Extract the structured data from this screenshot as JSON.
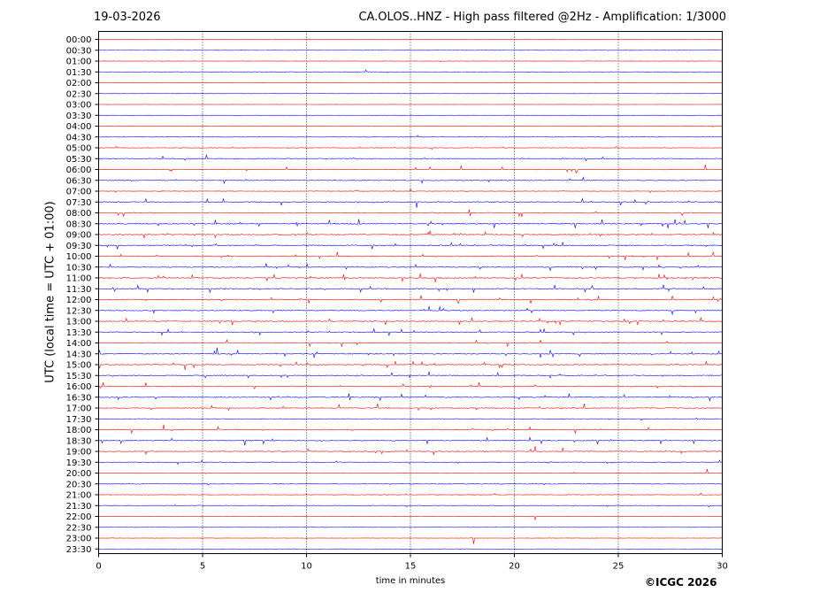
{
  "header": {
    "date": "19-03-2026",
    "title": "CA.OLOS..HNZ - High pass filtered @2Hz - Amplification: 1/3000"
  },
  "footer": {
    "copyright": "©ICGC 2026"
  },
  "colors": {
    "trace_a": "#ff0000",
    "trace_b": "#0000ff",
    "grid": "#000000"
  },
  "chart_data": {
    "type": "line",
    "xlabel": "time in minutes",
    "ylabel": "UTC (local time = UTC + 01:00)",
    "xlim": [
      0,
      30
    ],
    "x_ticks": [
      0,
      5,
      10,
      15,
      20,
      25,
      30
    ],
    "grid": "vertical dotted lines at x ticks",
    "rows": [
      "00:00",
      "00:30",
      "01:00",
      "01:30",
      "02:00",
      "02:30",
      "03:00",
      "03:30",
      "04:00",
      "04:30",
      "05:00",
      "05:30",
      "06:00",
      "06:30",
      "07:00",
      "07:30",
      "08:00",
      "08:30",
      "09:00",
      "09:30",
      "10:00",
      "10:30",
      "11:00",
      "11:30",
      "12:00",
      "12:30",
      "13:00",
      "13:30",
      "14:00",
      "14:30",
      "15:00",
      "15:30",
      "16:00",
      "16:30",
      "17:00",
      "17:30",
      "18:00",
      "18:30",
      "19:00",
      "19:30",
      "20:00",
      "20:30",
      "21:00",
      "21:30",
      "22:00",
      "22:30",
      "23:00",
      "23:30"
    ],
    "row_colors": "alternating red / blue starting red",
    "activity_level": [
      0.15,
      0.05,
      0.15,
      0.2,
      0.05,
      0.03,
      0.03,
      0.05,
      0.2,
      0.2,
      0.35,
      0.6,
      0.55,
      0.65,
      0.4,
      0.75,
      0.85,
      0.95,
      0.9,
      0.85,
      0.9,
      0.8,
      0.95,
      0.85,
      0.95,
      0.9,
      0.8,
      0.75,
      0.75,
      0.8,
      0.8,
      0.8,
      0.85,
      0.8,
      0.65,
      0.35,
      0.85,
      0.8,
      0.75,
      0.45,
      0.4,
      0.4,
      0.35,
      0.3,
      0.15,
      0.05,
      0.1,
      0.05
    ]
  }
}
